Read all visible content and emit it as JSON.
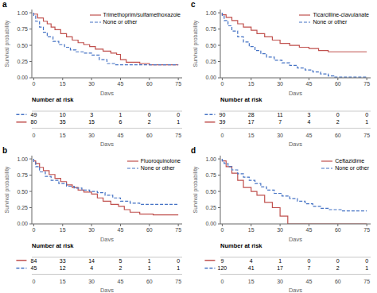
{
  "chart_data": [
    {
      "type": "step",
      "title": "a",
      "xlabel": "Days",
      "ylabel": "Survival probability",
      "xlim": [
        -1,
        77
      ],
      "xticks": [
        0,
        15,
        30,
        45,
        60,
        75
      ],
      "ylim": [
        0,
        1.05
      ],
      "yticks": [
        {
          "value": 0,
          "label": "0.00"
        },
        0.25,
        {
          "value": 0.5,
          "label": "0.50"
        },
        0.75,
        {
          "value": 1,
          "label": "1.00"
        }
      ],
      "grid": false,
      "legend": "upper right",
      "series": [
        {
          "name": "Trimethoprim/sulfamethoxazole",
          "color": "#c0504d",
          "line_style": "solid",
          "x": [
            0,
            0,
            2,
            5,
            7,
            9,
            11,
            14,
            17,
            20,
            23,
            26,
            29,
            32,
            36,
            40,
            43,
            45,
            48,
            55,
            60,
            75
          ],
          "values": [
            1.0,
            0.98,
            0.92,
            0.87,
            0.83,
            0.78,
            0.74,
            0.68,
            0.63,
            0.58,
            0.54,
            0.51,
            0.48,
            0.44,
            0.41,
            0.38,
            0.36,
            0.28,
            0.24,
            0.22,
            0.2,
            0.2
          ]
        },
        {
          "name": "None or other",
          "color": "#4472c4",
          "line_style": "dashed",
          "x": [
            0,
            0,
            1,
            3,
            5,
            7,
            10,
            13,
            16,
            19,
            22,
            26,
            30,
            34,
            38,
            42,
            75
          ],
          "values": [
            1.0,
            0.95,
            0.87,
            0.78,
            0.7,
            0.63,
            0.56,
            0.51,
            0.47,
            0.43,
            0.4,
            0.38,
            0.35,
            0.28,
            0.22,
            0.2,
            0.2
          ]
        }
      ],
      "risk_table": {
        "title": "Number at risk",
        "x": [
          0,
          15,
          30,
          45,
          60,
          75
        ],
        "rows": [
          {
            "color": "#4472c4",
            "line_style": "dashed",
            "values": [
              49,
              10,
              3,
              1,
              0,
              0
            ]
          },
          {
            "color": "#c0504d",
            "line_style": "solid",
            "values": [
              80,
              35,
              15,
              6,
              2,
              1
            ]
          }
        ]
      }
    },
    {
      "type": "step",
      "title": "b",
      "xlabel": "Days",
      "ylabel": "Survival probability",
      "xlim": [
        -1,
        77
      ],
      "xticks": [
        0,
        15,
        30,
        45,
        60,
        75
      ],
      "ylim": [
        0,
        1.05
      ],
      "yticks": [
        {
          "value": 0,
          "label": "0.00"
        },
        0.25,
        {
          "value": 0.5,
          "label": "0.50"
        },
        0.75,
        {
          "value": 1,
          "label": "1.00"
        }
      ],
      "grid": false,
      "legend": "upper right",
      "series": [
        {
          "name": "Fluoroquinolone",
          "color": "#c0504d",
          "line_style": "solid",
          "x": [
            0,
            0,
            1,
            3,
            5,
            8,
            11,
            14,
            17,
            20,
            23,
            26,
            30,
            33,
            36,
            40,
            44,
            47,
            50,
            55,
            62,
            75
          ],
          "values": [
            1.0,
            0.97,
            0.93,
            0.87,
            0.82,
            0.76,
            0.7,
            0.65,
            0.6,
            0.56,
            0.52,
            0.49,
            0.46,
            0.4,
            0.35,
            0.3,
            0.27,
            0.22,
            0.18,
            0.15,
            0.14,
            0.14
          ]
        },
        {
          "name": "None or other",
          "color": "#4472c4",
          "line_style": "dashed",
          "x": [
            0,
            0,
            1,
            3,
            6,
            9,
            13,
            17,
            21,
            25,
            29,
            33,
            37,
            41,
            45,
            50,
            55,
            62,
            75
          ],
          "values": [
            1.0,
            0.95,
            0.88,
            0.8,
            0.73,
            0.67,
            0.62,
            0.58,
            0.55,
            0.52,
            0.5,
            0.48,
            0.44,
            0.4,
            0.35,
            0.32,
            0.3,
            0.3,
            0.3
          ]
        }
      ],
      "risk_table": {
        "title": "Number at risk",
        "x": [
          0,
          15,
          30,
          45,
          60,
          75
        ],
        "rows": [
          {
            "color": "#c0504d",
            "line_style": "solid",
            "values": [
              84,
              33,
              14,
              5,
              1,
              0
            ]
          },
          {
            "color": "#4472c4",
            "line_style": "dashed",
            "values": [
              45,
              12,
              4,
              2,
              1,
              1
            ]
          }
        ]
      }
    },
    {
      "type": "step",
      "title": "c",
      "xlabel": "Days",
      "ylabel": "Survival probability",
      "xlim": [
        -1,
        77
      ],
      "xticks": [
        0,
        15,
        30,
        45,
        60,
        75
      ],
      "ylim": [
        0,
        1.05
      ],
      "yticks": [
        {
          "value": 0,
          "label": "0.00"
        },
        0.25,
        {
          "value": 0.5,
          "label": "0.50"
        },
        0.75,
        {
          "value": 1,
          "label": "1.00"
        }
      ],
      "grid": false,
      "legend": "upper right",
      "series": [
        {
          "name": "Ticarcilline-clavulanate",
          "color": "#c0504d",
          "line_style": "solid",
          "x": [
            0,
            0,
            2,
            5,
            8,
            11,
            15,
            18,
            22,
            26,
            30,
            35,
            40,
            45,
            50,
            55,
            75
          ],
          "values": [
            1.0,
            0.97,
            0.93,
            0.88,
            0.83,
            0.78,
            0.73,
            0.68,
            0.63,
            0.58,
            0.53,
            0.5,
            0.47,
            0.45,
            0.42,
            0.4,
            0.4
          ]
        },
        {
          "name": "None or other",
          "color": "#4472c4",
          "line_style": "dashed",
          "x": [
            0,
            0,
            1,
            3,
            5,
            8,
            11,
            14,
            17,
            20,
            23,
            27,
            31,
            35,
            39,
            43,
            47,
            51,
            55,
            58,
            75
          ],
          "values": [
            1.0,
            0.95,
            0.88,
            0.8,
            0.72,
            0.63,
            0.55,
            0.48,
            0.42,
            0.37,
            0.32,
            0.27,
            0.23,
            0.19,
            0.15,
            0.12,
            0.09,
            0.06,
            0.03,
            0.01,
            0.01
          ]
        }
      ],
      "risk_table": {
        "title": "Number at risk",
        "x": [
          0,
          15,
          30,
          45,
          60,
          75
        ],
        "rows": [
          {
            "color": "#4472c4",
            "line_style": "dashed",
            "values": [
              90,
              28,
              11,
              3,
              0,
              0
            ]
          },
          {
            "color": "#c0504d",
            "line_style": "solid",
            "values": [
              39,
              17,
              7,
              4,
              2,
              1
            ]
          }
        ]
      }
    },
    {
      "type": "step",
      "title": "d",
      "xlabel": "Days",
      "ylabel": "Survival probability",
      "xlim": [
        -1,
        77
      ],
      "xticks": [
        0,
        15,
        30,
        45,
        60,
        75
      ],
      "ylim": [
        0,
        1.05
      ],
      "yticks": [
        {
          "value": 0,
          "label": "0.00"
        },
        0.25,
        {
          "value": 0.5,
          "label": "0.50"
        },
        0.75,
        {
          "value": 1,
          "label": "1.00"
        }
      ],
      "grid": false,
      "legend": "upper right",
      "series": [
        {
          "name": "Ceftazidime",
          "color": "#c0504d",
          "line_style": "solid",
          "x": [
            0,
            0,
            2,
            5,
            8,
            11,
            15,
            18,
            22,
            26,
            30,
            34,
            75
          ],
          "values": [
            1.0,
            0.97,
            0.88,
            0.78,
            0.67,
            0.56,
            0.5,
            0.44,
            0.33,
            0.25,
            0.12,
            0.0,
            0.0
          ]
        },
        {
          "name": "None or other",
          "color": "#4472c4",
          "line_style": "dashed",
          "x": [
            0,
            0,
            1,
            3,
            5,
            8,
            11,
            14,
            17,
            20,
            23,
            27,
            31,
            35,
            39,
            43,
            47,
            51,
            55,
            62,
            75
          ],
          "values": [
            1.0,
            0.97,
            0.93,
            0.88,
            0.83,
            0.77,
            0.72,
            0.67,
            0.62,
            0.57,
            0.52,
            0.47,
            0.43,
            0.39,
            0.35,
            0.31,
            0.27,
            0.24,
            0.22,
            0.2,
            0.2
          ]
        }
      ],
      "risk_table": {
        "title": "Number at risk",
        "x": [
          0,
          15,
          30,
          45,
          60,
          75
        ],
        "rows": [
          {
            "color": "#c0504d",
            "line_style": "solid",
            "values": [
              9,
              4,
              1,
              0,
              0,
              0
            ]
          },
          {
            "color": "#4472c4",
            "line_style": "dashed",
            "values": [
              120,
              41,
              17,
              7,
              2,
              1
            ]
          }
        ]
      }
    }
  ]
}
